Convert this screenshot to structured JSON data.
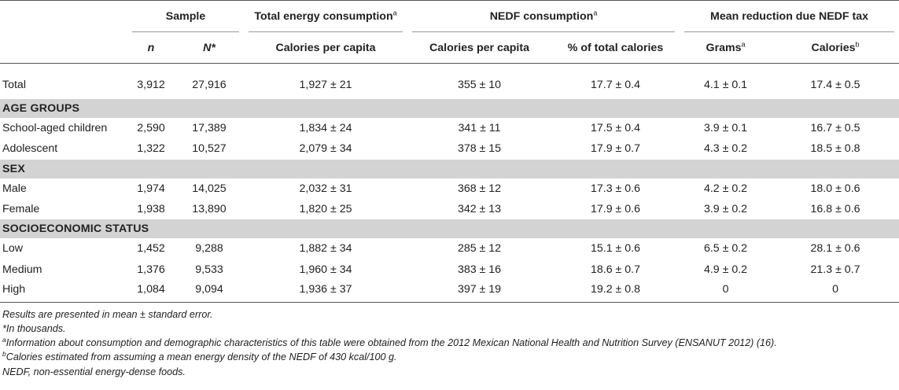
{
  "header": {
    "sample": "Sample",
    "total_energy": "Total energy consumption",
    "total_energy_sup": "a",
    "nedf": "NEDF consumption",
    "nedf_sup": "a",
    "mean_reduction": "Mean reduction due NEDF tax",
    "n": "n",
    "N": "N*",
    "cal_per_capita_1": "Calories per capita",
    "cal_per_capita_2": "Calories per capita",
    "pct_total": "% of total calories",
    "grams": "Grams",
    "grams_sup": "a",
    "calories": "Calories",
    "calories_sup": "b"
  },
  "rows": [
    {
      "type": "data",
      "label": "Total",
      "n": "3,912",
      "N": "27,916",
      "energy": "1,927 ± 21",
      "nedf_cal": "355 ± 10",
      "nedf_pct": "17.7 ± 0.4",
      "grams": "4.1 ± 0.1",
      "calories": "17.4 ± 0.5"
    },
    {
      "type": "section",
      "label": "AGE GROUPS"
    },
    {
      "type": "data",
      "label": "School-aged children",
      "n": "2,590",
      "N": "17,389",
      "energy": "1,834 ± 24",
      "nedf_cal": "341 ± 11",
      "nedf_pct": "17.5 ± 0.4",
      "grams": "3.9 ± 0.1",
      "calories": "16.7 ± 0.5"
    },
    {
      "type": "data",
      "label": "Adolescent",
      "n": "1,322",
      "N": "10,527",
      "energy": "2,079 ± 34",
      "nedf_cal": "378 ± 15",
      "nedf_pct": "17.9 ± 0.7",
      "grams": "4.3 ± 0.2",
      "calories": "18.5 ± 0.8"
    },
    {
      "type": "section",
      "label": "SEX"
    },
    {
      "type": "data",
      "label": "Male",
      "n": "1,974",
      "N": "14,025",
      "energy": "2,032 ± 31",
      "nedf_cal": "368 ± 12",
      "nedf_pct": "17.3 ± 0.6",
      "grams": "4.2 ± 0.2",
      "calories": "18.0 ± 0.6"
    },
    {
      "type": "data",
      "label": "Female",
      "n": "1,938",
      "N": "13,890",
      "energy": "1,820 ± 25",
      "nedf_cal": "342 ± 13",
      "nedf_pct": "17.9 ± 0.6",
      "grams": "3.9 ± 0.2",
      "calories": "16.8 ± 0.6"
    },
    {
      "type": "section",
      "label": "SOCIOECONOMIC STATUS"
    },
    {
      "type": "data",
      "label": "Low",
      "n": "1,452",
      "N": "9,288",
      "energy": "1,882 ± 34",
      "nedf_cal": "285 ± 12",
      "nedf_pct": "15.1 ± 0.6",
      "grams": "6.5 ± 0.2",
      "calories": "28.1 ± 0.6"
    },
    {
      "type": "data",
      "label": "Medium",
      "n": "1,376",
      "N": "9,533",
      "energy": "1,960 ± 34",
      "nedf_cal": "383 ± 16",
      "nedf_pct": "18.6 ± 0.7",
      "grams": "4.9 ± 0.2",
      "calories": "21.3 ± 0.7"
    },
    {
      "type": "data",
      "label": "High",
      "n": "1,084",
      "N": "9,094",
      "energy": "1,936 ± 37",
      "nedf_cal": "397 ± 19",
      "nedf_pct": "19.2 ± 0.8",
      "grams": "0",
      "calories": "0"
    }
  ],
  "notes": {
    "line1": "Results are presented in mean ± standard error.",
    "line2": "*In thousands.",
    "line3_sup": "a",
    "line3": "Information about consumption and demographic characteristics of this table were obtained from the 2012 Mexican National Health and Nutrition Survey (ENSANUT 2012) (16).",
    "line4_sup": "b",
    "line4": "Calories estimated from assuming a mean energy density of the NEDF of 430 kcal/100 g.",
    "line5": "NEDF, non-essential energy-dense foods."
  }
}
